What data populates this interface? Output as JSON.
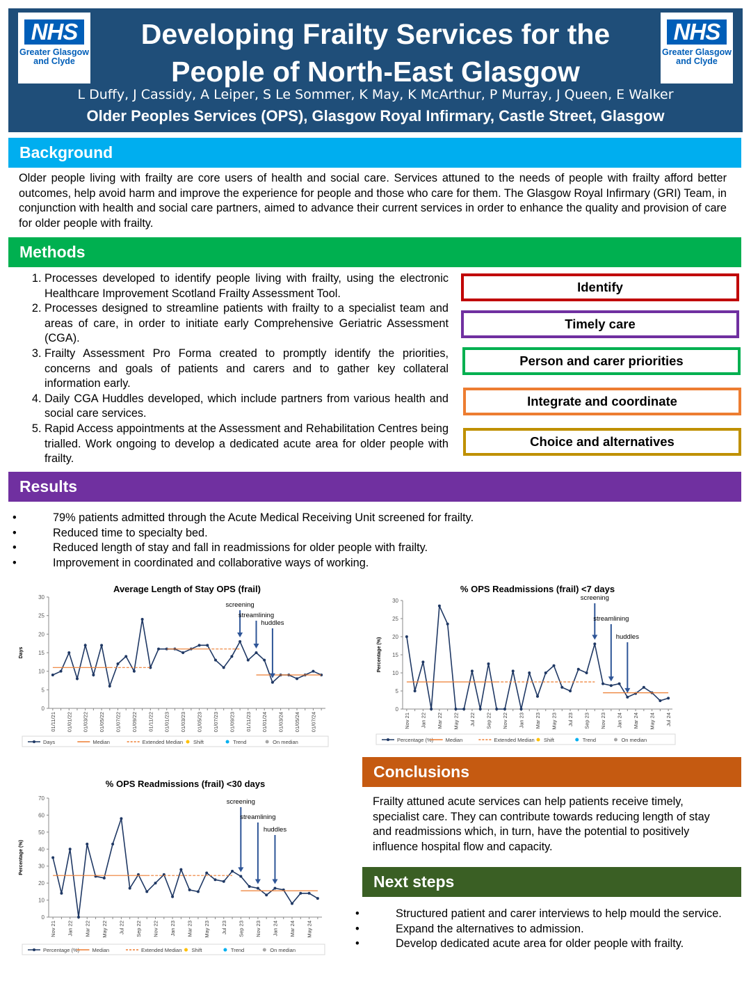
{
  "header": {
    "logo": [
      "NHS",
      "Greater Glasgow",
      "and Clyde"
    ],
    "title": [
      "Developing Frailty Services for the",
      "People of North-East Glasgow"
    ],
    "authors": "L Duffy, J Cassidy, A Leiper, S Le Sommer, K May, K McArthur, P Murray, J Queen, E Walker",
    "affiliation": "Older Peoples Services (OPS), Glasgow Royal Infirmary, Castle Street, Glasgow"
  },
  "background": {
    "heading": "Background",
    "text": "Older people living with frailty are core users of health and social care. Services attuned to the needs of people with frailty afford better outcomes, help avoid harm and improve the experience for people and those who care for them. The Glasgow Royal Infirmary (GRI) Team, in conjunction with health and social care partners, aimed to advance their current services in order to enhance the quality and provision of care for older people with frailty."
  },
  "methods": {
    "heading": "Methods",
    "items": [
      "Processes developed to identify people living with frailty, using the electronic Healthcare Improvement Scotland Frailty Assessment Tool.",
      "Processes designed to streamline patients with frailty to a specialist team and areas of care, in order to initiate early Comprehensive Geriatric Assessment (CGA).",
      "Frailty Assessment Pro Forma created to promptly identify the priorities, concerns and goals of patients and carers and to gather key collateral information early.",
      "Daily CGA Huddles developed, which include partners from various health and social care services.",
      "Rapid Access appointments at the Assessment and Rehabilitation Centres being trialled. Work ongoing to develop a dedicated acute area for older people with frailty."
    ],
    "boxes": [
      {
        "label": "Identify",
        "color": "#c00000"
      },
      {
        "label": "Timely care",
        "color": "#7030a0"
      },
      {
        "label": "Person and carer priorities",
        "color": "#00b050"
      },
      {
        "label": "Integrate and coordinate",
        "color": "#ed7d31"
      },
      {
        "label": "Choice and alternatives",
        "color": "#bf9000"
      }
    ]
  },
  "results": {
    "heading": "Results",
    "items": [
      "79% patients admitted through the Acute Medical Receiving Unit screened for frailty.",
      "Reduced time to specialty bed.",
      "Reduced length of stay and fall in readmissions for older people with frailty.",
      "Improvement in coordinated and collaborative ways of working."
    ]
  },
  "charts": [
    {
      "type": "line",
      "title": "Average Length of Stay OPS (frail)",
      "y_label": "Days",
      "categories": [
        "01/11/21",
        null,
        "01/01/22",
        null,
        "01/03/22",
        null,
        "01/05/22",
        null,
        "01/07/22",
        null,
        "01/09/22",
        null,
        "01/11/22",
        null,
        "01/01/23",
        null,
        "01/03/23",
        null,
        "01/05/23",
        null,
        "01/07/23",
        null,
        "01/09/23",
        null,
        "01/11/23",
        null,
        "01/01/24",
        null,
        "01/03/24",
        null,
        "01/05/24",
        null,
        "01/07/24",
        null
      ],
      "series": [
        {
          "name": "Days",
          "color": "#1f3864",
          "values": [
            9,
            10,
            15,
            8,
            17,
            9,
            17,
            6,
            12,
            14,
            10,
            24,
            11,
            16,
            16,
            16,
            15,
            16,
            17,
            17,
            13,
            11,
            14,
            18,
            13,
            15,
            13,
            7,
            9,
            9,
            8,
            9,
            10,
            9
          ]
        },
        {
          "name": "Median",
          "color": "#ed7d31",
          "values": [
            11,
            11,
            11,
            11,
            11,
            11,
            11,
            11,
            null,
            null,
            null,
            null,
            null,
            null,
            16,
            16,
            16,
            16,
            16,
            16,
            null,
            null,
            null,
            null,
            null,
            9,
            9,
            9,
            9,
            9,
            9,
            9,
            9,
            9
          ]
        },
        {
          "name": "Extended Median",
          "color": "#ed7d31",
          "dashed": true,
          "values": [
            null,
            null,
            null,
            null,
            null,
            null,
            null,
            11,
            11,
            11,
            11,
            11,
            11,
            null,
            null,
            null,
            null,
            null,
            null,
            16,
            16,
            16,
            16,
            16,
            null,
            null,
            null,
            null,
            null,
            null,
            null,
            null,
            null,
            null
          ]
        }
      ],
      "legend_extra": [
        {
          "name": "Shift",
          "color": "#ffc000"
        },
        {
          "name": "Trend",
          "color": "#00b0f0"
        },
        {
          "name": "On median",
          "color": "#a6a6a6"
        }
      ],
      "annotations": [
        "screening",
        "streamlining",
        "huddles"
      ],
      "ylim": [
        0,
        30
      ],
      "yticks": [
        0,
        5,
        10,
        15,
        20,
        25,
        30
      ]
    },
    {
      "type": "line",
      "title": "% OPS Readmissions (frail) <7 days",
      "y_label": "Percentage (%)",
      "categories": [
        "Nov 21",
        null,
        "Jan 22",
        null,
        "Mar 22",
        null,
        "May 22",
        null,
        "Jul 22",
        null,
        "Sep 22",
        null,
        "Nov 22",
        null,
        "Jan 23",
        null,
        "Mar 23",
        null,
        "May 23",
        null,
        "Jul 23",
        null,
        "Sep 23",
        null,
        "Nov 23",
        null,
        "Jan 24",
        null,
        "Mar 24",
        null,
        "May 24",
        null,
        "Jul 24"
      ],
      "series": [
        {
          "name": "Percentage (%)",
          "color": "#1f3864",
          "values": [
            20,
            5,
            13,
            0,
            28.5,
            23.5,
            0,
            0,
            10.5,
            0,
            12.5,
            0,
            0,
            10.5,
            0,
            10,
            3.5,
            10,
            12,
            6,
            5,
            11,
            10,
            18,
            7,
            6.5,
            7,
            3.3,
            4.3,
            6,
            4.5,
            2.3,
            3
          ]
        },
        {
          "name": "Median",
          "color": "#ed7d31",
          "values": [
            7.5,
            7.5,
            7.5,
            7.5,
            7.5,
            7.5,
            7.5,
            7.5,
            7.5,
            7.5,
            7.5,
            7.5,
            null,
            null,
            null,
            null,
            null,
            null,
            null,
            null,
            null,
            null,
            null,
            null,
            4.5,
            4.5,
            4.5,
            4.5,
            4.5,
            4.5,
            4.5,
            4.5,
            4.5
          ]
        },
        {
          "name": "Extended Median",
          "color": "#ed7d31",
          "dashed": true,
          "values": [
            null,
            null,
            null,
            null,
            null,
            null,
            null,
            null,
            null,
            null,
            null,
            7.5,
            7.5,
            7.5,
            7.5,
            7.5,
            7.5,
            7.5,
            7.5,
            7.5,
            7.5,
            7.5,
            7.5,
            7.5,
            null,
            null,
            null,
            null,
            null,
            null,
            null,
            null,
            null
          ]
        }
      ],
      "legend_extra": [
        {
          "name": "Shift",
          "color": "#ffc000"
        },
        {
          "name": "Trend",
          "color": "#00b0f0"
        },
        {
          "name": "On median",
          "color": "#a6a6a6"
        }
      ],
      "annotations": [
        "screening",
        "streamlining",
        "huddles"
      ],
      "ylim": [
        0,
        30
      ],
      "yticks": [
        0,
        5,
        10,
        15,
        20,
        25,
        30
      ]
    },
    {
      "type": "line",
      "title": "% OPS Readmissions (frail) <30 days",
      "y_label": "Percentage (%)",
      "categories": [
        "Nov 21",
        null,
        "Jan 22",
        null,
        "Mar 22",
        null,
        "May 22",
        null,
        "Jul 22",
        null,
        "Sep 22",
        null,
        "Nov 22",
        null,
        "Jan 23",
        null,
        "Mar 23",
        null,
        "May 23",
        null,
        "Jul 23",
        null,
        "Sep 23",
        null,
        "Nov 23",
        null,
        "Jan 24",
        null,
        "Mar 24",
        null,
        "May 24",
        null
      ],
      "series": [
        {
          "name": "Percentage (%)",
          "color": "#1f3864",
          "values": [
            35,
            14,
            40,
            0,
            43,
            24,
            23,
            43,
            58,
            17,
            25,
            15,
            20,
            25,
            12,
            28,
            16,
            15,
            26,
            22,
            21,
            27,
            24,
            18,
            17,
            13,
            17,
            16,
            8,
            14,
            14,
            11
          ]
        },
        {
          "name": "Median",
          "color": "#ed7d31",
          "values": [
            24.5,
            24.5,
            24.5,
            24.5,
            24.5,
            24.5,
            24.5,
            24.5,
            24.5,
            24.5,
            24.5,
            24.5,
            null,
            null,
            null,
            null,
            null,
            null,
            null,
            null,
            null,
            null,
            15.5,
            15.5,
            15.5,
            15.5,
            15.5,
            15.5,
            15.5,
            15.5,
            15.5,
            15.5
          ]
        },
        {
          "name": "Extended Median",
          "color": "#ed7d31",
          "dashed": true,
          "values": [
            null,
            null,
            null,
            null,
            null,
            null,
            null,
            null,
            null,
            null,
            null,
            24.5,
            24.5,
            24.5,
            24.5,
            24.5,
            24.5,
            24.5,
            24.5,
            24.5,
            24.5,
            24.5,
            null,
            null,
            null,
            null,
            null,
            null,
            null,
            null,
            null,
            null
          ]
        }
      ],
      "legend_extra": [
        {
          "name": "Shift",
          "color": "#ffc000"
        },
        {
          "name": "Trend",
          "color": "#00b0f0"
        },
        {
          "name": "On median",
          "color": "#a6a6a6"
        }
      ],
      "annotations": [
        "screening",
        "streamlining",
        "huddles"
      ],
      "ylim": [
        0,
        70
      ],
      "yticks": [
        0,
        10,
        20,
        30,
        40,
        50,
        60,
        70
      ]
    }
  ],
  "conclusions": {
    "heading": "Conclusions",
    "text": "Frailty attuned acute services can help patients receive timely, specialist care. They can contribute towards reducing length of stay and readmissions which, in turn, have the potential to positively influence hospital flow and capacity."
  },
  "next_steps": {
    "heading": "Next steps",
    "items": [
      "Structured patient and carer interviews to help mould the service.",
      "Expand the alternatives to admission.",
      "Develop dedicated acute area for older people with frailty."
    ]
  }
}
